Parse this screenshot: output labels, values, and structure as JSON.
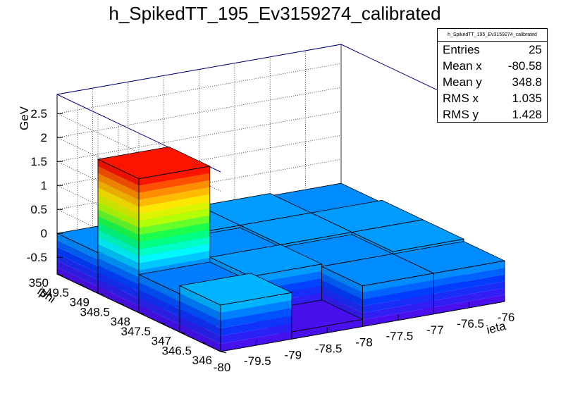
{
  "chart_data": {
    "type": "lego3d",
    "title": "h_SpikedTT_195_Ev3159274_calibrated",
    "xlabel": "ieta",
    "ylabel": "iphi",
    "zlabel": "GeV",
    "x_ticks": [
      "-80",
      "-79.5",
      "-79",
      "-78.5",
      "-78",
      "-77.5",
      "-77",
      "-76.5",
      "-76"
    ],
    "y_ticks": [
      "346",
      "346.5",
      "347",
      "347.5",
      "348",
      "348.5",
      "349",
      "349.5",
      "350"
    ],
    "z_ticks": [
      "-0.5",
      "0",
      "0.5",
      "1",
      "1.5",
      "2",
      "2.5"
    ],
    "xlim": [
      -80,
      -76
    ],
    "ylim": [
      346,
      350
    ],
    "zlim": [
      -0.85,
      2.9
    ],
    "bins": [
      {
        "x": -79.5,
        "y": 346.5,
        "z": 0.12
      },
      {
        "x": -79.5,
        "y": 347.5,
        "z": -0.05
      },
      {
        "x": -79.5,
        "y": 348.5,
        "z": 1.95
      },
      {
        "x": -79.5,
        "y": 349.5,
        "z": 0.0
      },
      {
        "x": -78.5,
        "y": 346.5,
        "z": -0.7
      },
      {
        "x": -78.5,
        "y": 347.5,
        "z": 0.05
      },
      {
        "x": -78.5,
        "y": 348.5,
        "z": 0.0
      },
      {
        "x": -78.5,
        "y": 349.5,
        "z": 0.05
      },
      {
        "x": -77.5,
        "y": 346.5,
        "z": 0.0
      },
      {
        "x": -77.5,
        "y": 347.5,
        "z": 0.0
      },
      {
        "x": -77.5,
        "y": 348.5,
        "z": 0.05
      },
      {
        "x": -77.5,
        "y": 349.5,
        "z": 0.05
      },
      {
        "x": -76.5,
        "y": 346.5,
        "z": 0.0
      },
      {
        "x": -76.5,
        "y": 347.5,
        "z": 0.05
      },
      {
        "x": -76.5,
        "y": 348.5,
        "z": 0.05
      },
      {
        "x": -76.5,
        "y": 349.5,
        "z": 0.0
      }
    ],
    "stats": {
      "name": "h_SpikedTT_195_Ev3159274_calibrated",
      "rows": [
        {
          "label": "Entries",
          "value": "25"
        },
        {
          "label": "Mean x",
          "value": "-80.58"
        },
        {
          "label": "Mean y",
          "value": "348.8"
        },
        {
          "label": "RMS x",
          "value": "1.035"
        },
        {
          "label": "RMS y",
          "value": "1.428"
        }
      ]
    }
  }
}
